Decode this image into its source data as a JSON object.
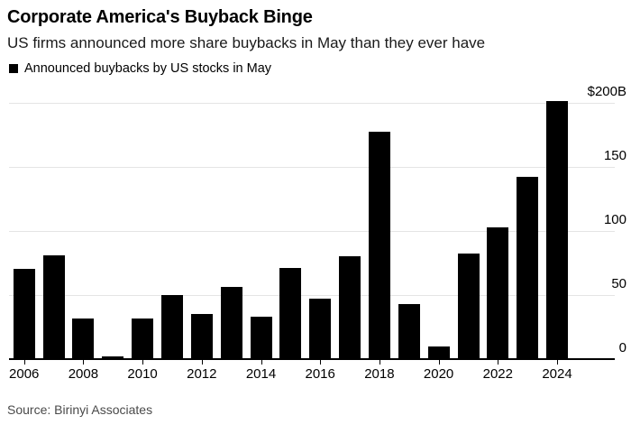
{
  "header": {
    "title": "Corporate America's Buyback Binge",
    "subtitle": "US firms announced more share buybacks in May than they ever have"
  },
  "legend": {
    "label": "Announced buybacks by US stocks in May",
    "marker_color": "#000000"
  },
  "chart_data": {
    "type": "bar",
    "title": "Announced buybacks by US stocks in May",
    "categories": [
      2006,
      2007,
      2008,
      2009,
      2010,
      2011,
      2012,
      2013,
      2014,
      2015,
      2016,
      2017,
      2018,
      2019,
      2020,
      2021,
      2022,
      2023,
      2024
    ],
    "values": [
      70,
      81,
      32,
      2,
      32,
      50,
      35,
      56,
      33,
      71,
      47,
      80,
      177,
      43,
      10,
      82,
      103,
      142,
      201
    ],
    "unit": "billions of US dollars",
    "xlabel": "",
    "ylabel": "",
    "ylim": [
      0,
      200
    ],
    "y_ticks": [
      0,
      50,
      100,
      150,
      200
    ],
    "y_tick_labels": [
      "0",
      "50",
      "100",
      "150",
      "$200B"
    ],
    "x_tick_labels": [
      "2006",
      "2008",
      "2010",
      "2012",
      "2014",
      "2016",
      "2018",
      "2020",
      "2022",
      "2024"
    ],
    "bar_color": "#000000",
    "grid": true,
    "gridline_color": "#e4e4e4",
    "legend_position": "top-left",
    "y_axis_side": "right"
  },
  "source": {
    "label": "Source: Birinyi Associates"
  }
}
